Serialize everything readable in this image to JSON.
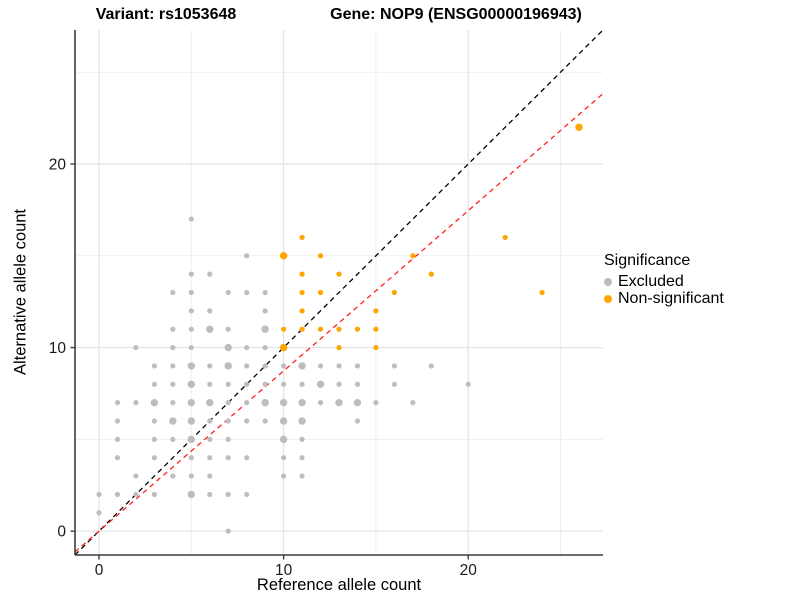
{
  "chart_data": {
    "type": "scatter",
    "title_left": "Variant: rs1053648",
    "title_right": "Gene: NOP9 (ENSG00000196943)",
    "xlabel": "Reference allele count",
    "ylabel": "Alternative allele count",
    "xlim": [
      -1.3,
      27.3
    ],
    "ylim": [
      -1.3,
      27.3
    ],
    "x_ticks": [
      0,
      10,
      20
    ],
    "y_ticks": [
      0,
      10,
      20
    ],
    "grid_major": [
      0,
      10,
      20
    ],
    "grid_minor": [
      5,
      15,
      25
    ],
    "grid_on": true,
    "colors": {
      "excluded": "#BDBDBD",
      "non_significant": "#FFA500",
      "identity_line": "#000000",
      "fit_line": "#FF2020",
      "grid_major": "#E3E3E3",
      "grid_minor": "#EFEFEF",
      "axis_line": "#3C3C3C",
      "text": "#1A1A1A"
    },
    "legend": {
      "title": "Significance",
      "position": "right",
      "entries": [
        {
          "label": "Excluded",
          "color": "#BDBDBD"
        },
        {
          "label": "Non-significant",
          "color": "#FFA500"
        }
      ]
    },
    "lines": [
      {
        "name": "identity",
        "slope": 1,
        "intercept": 0,
        "color": "#000000",
        "style": "dashed"
      },
      {
        "name": "fit",
        "slope": 0.873,
        "intercept": 0,
        "color": "#FF2020",
        "style": "dashed"
      }
    ],
    "series": [
      {
        "name": "Excluded",
        "color": "#BDBDBD",
        "points": [
          [
            5,
            17,
            1
          ],
          [
            8,
            15,
            1
          ],
          [
            5,
            14,
            1
          ],
          [
            6,
            14,
            1
          ],
          [
            4,
            13,
            1
          ],
          [
            5,
            13,
            1
          ],
          [
            7,
            13,
            1
          ],
          [
            8,
            13,
            1
          ],
          [
            9,
            13,
            1
          ],
          [
            5,
            12,
            1
          ],
          [
            6,
            12,
            1
          ],
          [
            9,
            12,
            1
          ],
          [
            4,
            11,
            1
          ],
          [
            5,
            11,
            1
          ],
          [
            6,
            11,
            2
          ],
          [
            7,
            11,
            1
          ],
          [
            9,
            11,
            2
          ],
          [
            2,
            10,
            1
          ],
          [
            4,
            10,
            1
          ],
          [
            5,
            10,
            1
          ],
          [
            7,
            10,
            2
          ],
          [
            8,
            10,
            1
          ],
          [
            9,
            10,
            1
          ],
          [
            3,
            9,
            1
          ],
          [
            4,
            9,
            1
          ],
          [
            5,
            9,
            2
          ],
          [
            6,
            9,
            1
          ],
          [
            7,
            9,
            2
          ],
          [
            8,
            9,
            1
          ],
          [
            9,
            9,
            1
          ],
          [
            10,
            9,
            1
          ],
          [
            11,
            9,
            2
          ],
          [
            12,
            9,
            1
          ],
          [
            13,
            9,
            1
          ],
          [
            14,
            9,
            1
          ],
          [
            16,
            9,
            1
          ],
          [
            18,
            9,
            1
          ],
          [
            3,
            8,
            1
          ],
          [
            4,
            8,
            1
          ],
          [
            5,
            8,
            2
          ],
          [
            6,
            8,
            1
          ],
          [
            7,
            8,
            1
          ],
          [
            8,
            8,
            1
          ],
          [
            9,
            8,
            1
          ],
          [
            10,
            8,
            1
          ],
          [
            11,
            8,
            1
          ],
          [
            12,
            8,
            2
          ],
          [
            13,
            8,
            1
          ],
          [
            14,
            8,
            1
          ],
          [
            16,
            8,
            1
          ],
          [
            20,
            8,
            1
          ],
          [
            1,
            7,
            1
          ],
          [
            2,
            7,
            1
          ],
          [
            3,
            7,
            2
          ],
          [
            4,
            7,
            1
          ],
          [
            5,
            7,
            2
          ],
          [
            6,
            7,
            2
          ],
          [
            7,
            7,
            1
          ],
          [
            8,
            7,
            1
          ],
          [
            9,
            7,
            2
          ],
          [
            10,
            7,
            2
          ],
          [
            11,
            7,
            2
          ],
          [
            12,
            7,
            1
          ],
          [
            13,
            7,
            2
          ],
          [
            14,
            7,
            2
          ],
          [
            15,
            7,
            1
          ],
          [
            17,
            7,
            1
          ],
          [
            1,
            6,
            1
          ],
          [
            3,
            6,
            1
          ],
          [
            4,
            6,
            2
          ],
          [
            5,
            6,
            2
          ],
          [
            6,
            6,
            1
          ],
          [
            7,
            6,
            1
          ],
          [
            8,
            6,
            1
          ],
          [
            9,
            6,
            1
          ],
          [
            10,
            6,
            2
          ],
          [
            11,
            6,
            2
          ],
          [
            14,
            6,
            1
          ],
          [
            1,
            5,
            1
          ],
          [
            3,
            5,
            1
          ],
          [
            4,
            5,
            1
          ],
          [
            5,
            5,
            2
          ],
          [
            6,
            5,
            1
          ],
          [
            7,
            5,
            1
          ],
          [
            10,
            5,
            2
          ],
          [
            11,
            5,
            1
          ],
          [
            1,
            4,
            1
          ],
          [
            3,
            4,
            1
          ],
          [
            5,
            4,
            1
          ],
          [
            6,
            4,
            1
          ],
          [
            7,
            4,
            1
          ],
          [
            8,
            4,
            1
          ],
          [
            10,
            4,
            1
          ],
          [
            11,
            4,
            1
          ],
          [
            2,
            3,
            1
          ],
          [
            4,
            3,
            1
          ],
          [
            5,
            3,
            1
          ],
          [
            6,
            3,
            1
          ],
          [
            10,
            3,
            1
          ],
          [
            11,
            3,
            1
          ],
          [
            0,
            2,
            1
          ],
          [
            1,
            2,
            1
          ],
          [
            2,
            2,
            1
          ],
          [
            3,
            2,
            1
          ],
          [
            5,
            2,
            2
          ],
          [
            6,
            2,
            1
          ],
          [
            7,
            2,
            1
          ],
          [
            8,
            2,
            1
          ],
          [
            0,
            1,
            1
          ],
          [
            7,
            0,
            1
          ]
        ]
      },
      {
        "name": "Non-significant",
        "color": "#FFA500",
        "points": [
          [
            11,
            16,
            1
          ],
          [
            22,
            16,
            1
          ],
          [
            10,
            15,
            2
          ],
          [
            12,
            15,
            1
          ],
          [
            17,
            15,
            1
          ],
          [
            11,
            14,
            1
          ],
          [
            13,
            14,
            1
          ],
          [
            18,
            14,
            1
          ],
          [
            11,
            13,
            1
          ],
          [
            12,
            13,
            1
          ],
          [
            16,
            13,
            1
          ],
          [
            24,
            13,
            1
          ],
          [
            11,
            12,
            1
          ],
          [
            15,
            12,
            1
          ],
          [
            10,
            11,
            1
          ],
          [
            11,
            11,
            1
          ],
          [
            12,
            11,
            1
          ],
          [
            13,
            11,
            1
          ],
          [
            14,
            11,
            1
          ],
          [
            15,
            11,
            1
          ],
          [
            10,
            10,
            2
          ],
          [
            13,
            10,
            1
          ],
          [
            15,
            10,
            1
          ],
          [
            26,
            22,
            2
          ]
        ]
      }
    ]
  }
}
